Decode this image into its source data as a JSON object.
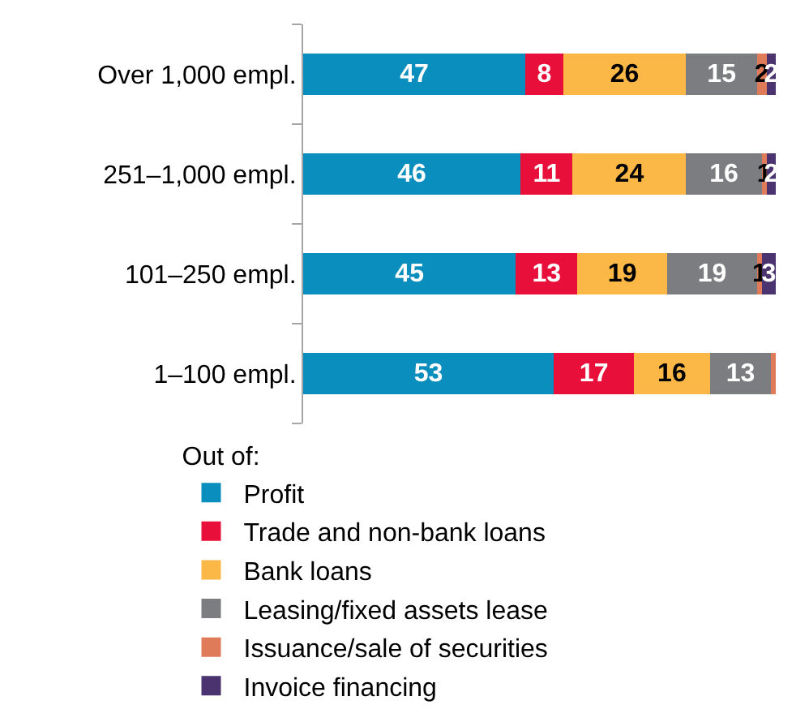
{
  "chart_data": {
    "type": "bar",
    "orientation": "horizontal",
    "stacked": true,
    "data_labels": true,
    "categories": [
      "Over 1,000 empl.",
      "251–1,000 empl.",
      "101–250 empl.",
      "1–100 empl."
    ],
    "legend_title": "Out of:",
    "legend": "bottom",
    "series": [
      {
        "name": "Profit",
        "color": "#0a8ebd",
        "values": [
          47,
          46,
          45,
          53
        ]
      },
      {
        "name": "Trade and non-bank loans",
        "color": "#e8103a",
        "values": [
          8,
          11,
          13,
          17
        ]
      },
      {
        "name": "Bank loans",
        "color": "#fbb847",
        "values": [
          26,
          24,
          19,
          16
        ]
      },
      {
        "name": "Leasing/fixed assets lease",
        "color": "#7c7d80",
        "values": [
          15,
          16,
          19,
          13
        ]
      },
      {
        "name": "Issuance/sale of securities",
        "color": "#e07b5a",
        "values": [
          2,
          1,
          1,
          1
        ],
        "value_labels": [
          "2",
          "1",
          "1",
          null
        ]
      },
      {
        "name": "Invoice financing",
        "color": "#4a336e",
        "values": [
          2,
          2,
          3,
          0
        ],
        "value_labels": [
          "2",
          "2",
          "3",
          null
        ]
      }
    ]
  }
}
